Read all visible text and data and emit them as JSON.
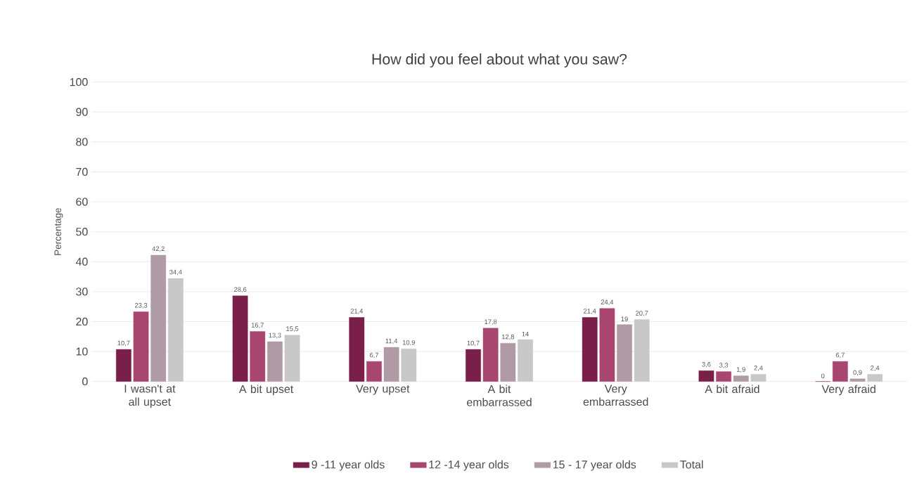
{
  "chart_data": {
    "type": "bar",
    "title": "How did you feel about what you saw?",
    "ylabel": "Percentage",
    "categories": [
      "I wasn't at all upset",
      "A bit upset",
      "Very upset",
      "A bit embarrassed",
      "Very embarrassed",
      "A bit afraid",
      "Very afraid"
    ],
    "series": [
      {
        "name": "9 -11 year olds",
        "color": "#7a1f4a",
        "values": [
          10.7,
          28.6,
          21.4,
          10.7,
          21.4,
          3.6,
          0
        ],
        "value_labels": [
          "10,7",
          "28,6",
          "21,4",
          "10,7",
          "21,4",
          "3,6",
          "0"
        ]
      },
      {
        "name": "12 -14 year olds",
        "color": "#a8466f",
        "values": [
          23.3,
          16.7,
          6.7,
          17.8,
          24.4,
          3.3,
          6.7
        ],
        "value_labels": [
          "23,3",
          "16,7",
          "6,7",
          "17,8",
          "24,4",
          "3,3",
          "6,7"
        ]
      },
      {
        "name": "15 - 17 year olds",
        "color": "#b09aa5",
        "values": [
          42.2,
          13.3,
          11.4,
          12.8,
          19,
          1.9,
          0.9
        ],
        "value_labels": [
          "42,2",
          "13,3",
          "11,4",
          "12,8",
          "19",
          "1,9",
          "0,9"
        ]
      },
      {
        "name": "Total",
        "color": "#c8c8c8",
        "values": [
          34.4,
          15.5,
          10.9,
          14,
          20.7,
          2.4,
          2.4
        ],
        "value_labels": [
          "34,4",
          "15,5",
          "10,9",
          "14",
          "20,7",
          "2,4",
          "2,4"
        ]
      }
    ],
    "ylim": [
      0,
      100
    ],
    "yticks": [
      0,
      10,
      20,
      30,
      40,
      50,
      60,
      70,
      80,
      90,
      100
    ],
    "grid": "y",
    "legend": "bottom"
  }
}
